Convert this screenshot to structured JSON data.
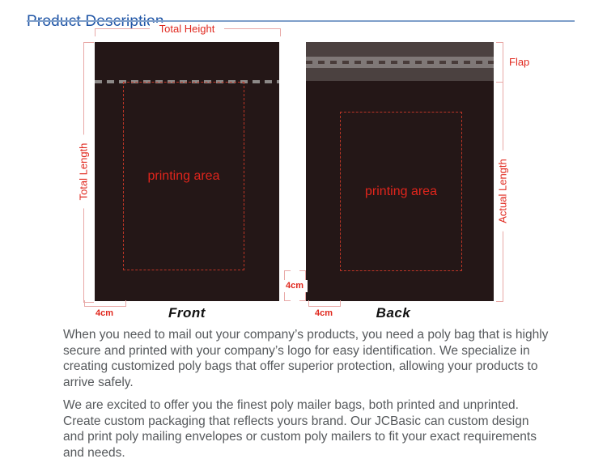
{
  "page": {
    "title": "Product Description"
  },
  "diagram": {
    "front": {
      "name": "Front",
      "printing_area": "printing area",
      "total_height": "Total Height",
      "total_length": "Total Length",
      "bottom_margin": "4cm"
    },
    "back": {
      "name": "Back",
      "printing_area": "printing area",
      "flap": "Flap",
      "actual_length": "Actual Length",
      "bottom_margin": "4cm"
    },
    "gusset_margin": "4cm"
  },
  "paragraphs": [
    "When you need to mail out your company’s products, you need a poly bag that is highly secure and printed with your company’s logo for easy identification. We specialize in creating customized poly bags that offer superior protection, allowing your products to arrive safely.",
    "We are excited to offer you the finest poly mailer bags, both printed and unprinted. Create custom packaging that reflects yours brand. Our JCBasic can custom design and print poly mailing envelopes or custom poly mailers to fit your exact requirements and needs."
  ],
  "colors": {
    "title_blue": "#1f55a6",
    "rule_blue": "#7f9fca",
    "bag_body": "#241717",
    "flap_gray": "#4b4140",
    "flap_strip": "#7f7877",
    "dimension_line_pink": "#e8a9a7",
    "dimension_text_red": "#e0281e",
    "printing_dash_red": "#bb3526",
    "body_text_gray": "#56595c"
  }
}
